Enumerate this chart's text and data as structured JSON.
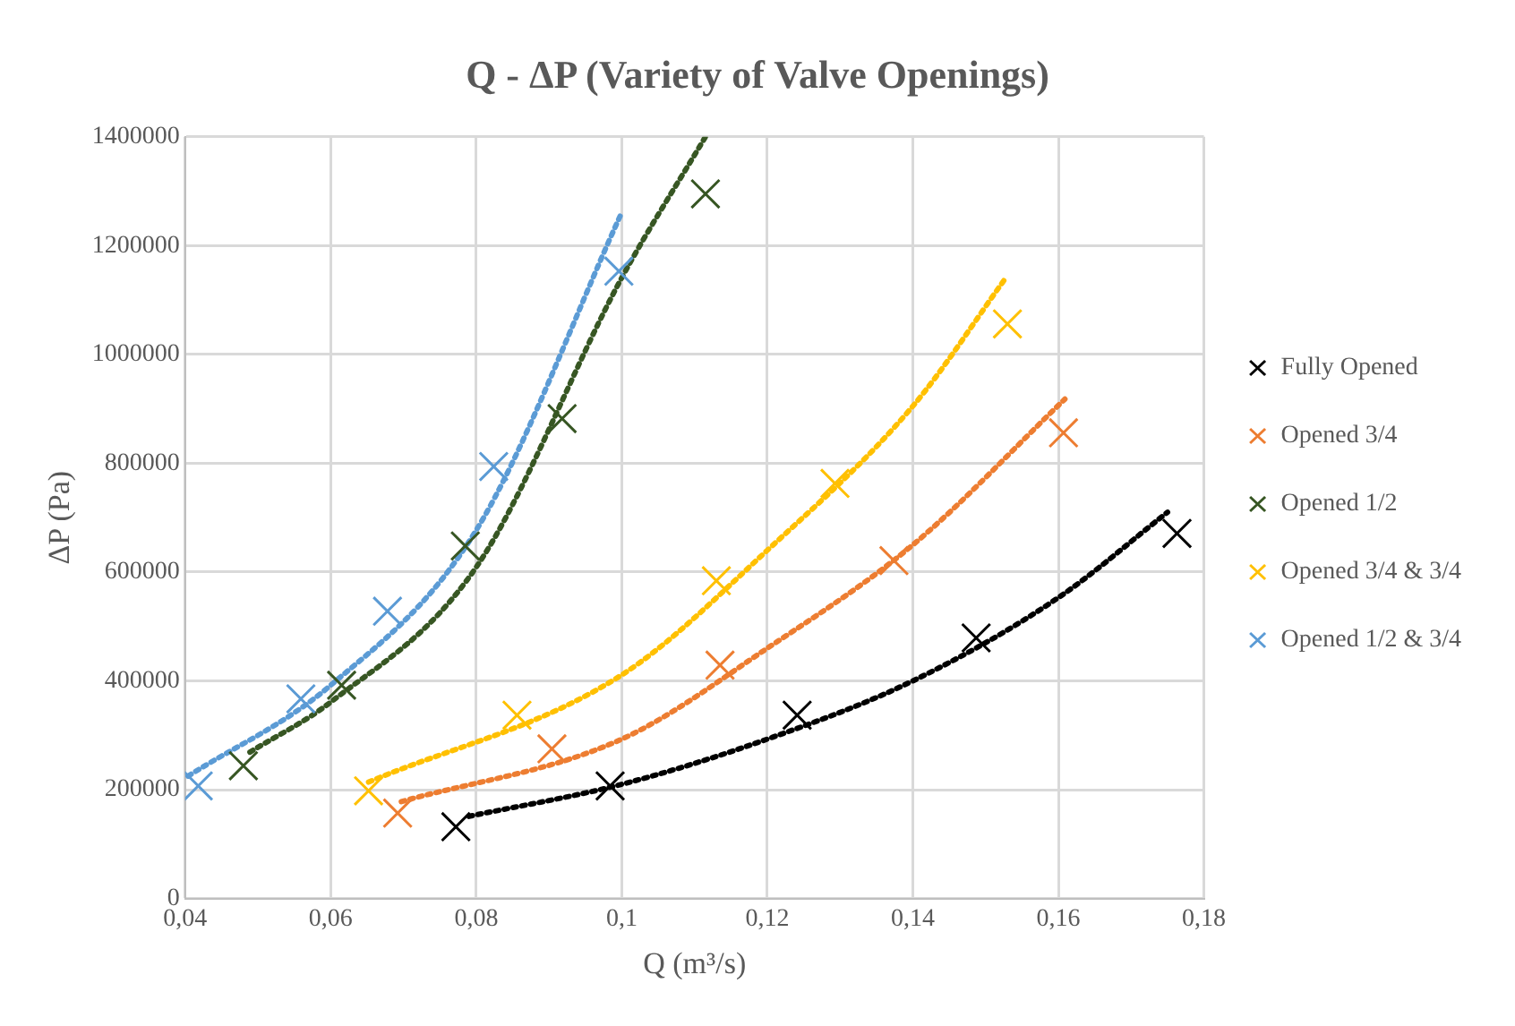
{
  "chart_data": {
    "type": "scatter",
    "title": "Q - ΔP (Variety of Valve Openings)",
    "xlabel": "Q (m³/s)",
    "ylabel": "ΔP (Pa)",
    "xlim": [
      0.04,
      0.18
    ],
    "xticks": [
      {
        "value": 0.04,
        "label": "0,04"
      },
      {
        "value": 0.06,
        "label": "0,06"
      },
      {
        "value": 0.08,
        "label": "0,08"
      },
      {
        "value": 0.1,
        "label": "0,1"
      },
      {
        "value": 0.12,
        "label": "0,12"
      },
      {
        "value": 0.14,
        "label": "0,14"
      },
      {
        "value": 0.16,
        "label": "0,16"
      },
      {
        "value": 0.18,
        "label": "0,18"
      }
    ],
    "ylim": [
      0,
      1400000
    ],
    "yticks": [
      0,
      200000,
      400000,
      600000,
      800000,
      1000000,
      1200000,
      1400000
    ],
    "grid": true,
    "legend": "right",
    "marker": "cross",
    "series": [
      {
        "name": "Fully Opened",
        "color": "#000000",
        "x": [
          0.0772,
          0.0984,
          0.1241,
          0.1487,
          0.1763
        ],
        "values": [
          132000,
          207000,
          337000,
          479000,
          671000
        ]
      },
      {
        "name": "Opened 3/4",
        "color": "#ed7d31",
        "x": [
          0.0692,
          0.0904,
          0.1135,
          0.1374,
          0.1607
        ],
        "values": [
          157000,
          275000,
          429000,
          621000,
          856000
        ]
      },
      {
        "name": "Opened 1/2",
        "color": "#375623",
        "x": [
          0.048,
          0.0615,
          0.0785,
          0.0918,
          0.1115
        ],
        "values": [
          244000,
          392000,
          648000,
          882000,
          1295000
        ]
      },
      {
        "name": "Opened 3/4 & 3/4",
        "color": "#ffc000",
        "x": [
          0.0652,
          0.0856,
          0.113,
          0.1293,
          0.153
        ],
        "values": [
          198000,
          337000,
          584000,
          763000,
          1056000
        ]
      },
      {
        "name": "Opened 1/2 & 3/4",
        "color": "#5b9bd5",
        "x": [
          0.0418,
          0.0559,
          0.0678,
          0.0824,
          0.0996
        ],
        "values": [
          207000,
          367000,
          528000,
          794000,
          1153000
        ]
      },
      {
        "type": "line",
        "color": "#000000",
        "line_style": "dotted",
        "marker": "none",
        "x": [
          0.079,
          0.1,
          0.12,
          0.14,
          0.16,
          0.175
        ],
        "values": [
          151000,
          210000,
          293000,
          400000,
          553000,
          710000
        ]
      },
      {
        "type": "line",
        "color": "#ed7d31",
        "line_style": "dotted",
        "marker": "none",
        "x": [
          0.0697,
          0.1,
          0.12,
          0.14,
          0.1609
        ],
        "values": [
          178000,
          293000,
          460000,
          650000,
          918000
        ]
      },
      {
        "type": "line",
        "color": "#375623",
        "line_style": "dotted",
        "marker": "none",
        "x": [
          0.0489,
          0.06,
          0.08,
          0.1,
          0.1115
        ],
        "values": [
          269000,
          361000,
          609000,
          1141000,
          1400000
        ]
      },
      {
        "type": "line",
        "color": "#ffc000",
        "line_style": "dotted",
        "marker": "none",
        "x": [
          0.0652,
          0.1,
          0.12,
          0.14,
          0.1529
        ],
        "values": [
          214000,
          411000,
          640000,
          905000,
          1143000
        ]
      },
      {
        "type": "line",
        "color": "#5b9bd5",
        "line_style": "dotted",
        "marker": "none",
        "x": [
          0.0404,
          0.06,
          0.08,
          0.0999
        ],
        "values": [
          225000,
          392000,
          677000,
          1258000
        ]
      }
    ]
  }
}
